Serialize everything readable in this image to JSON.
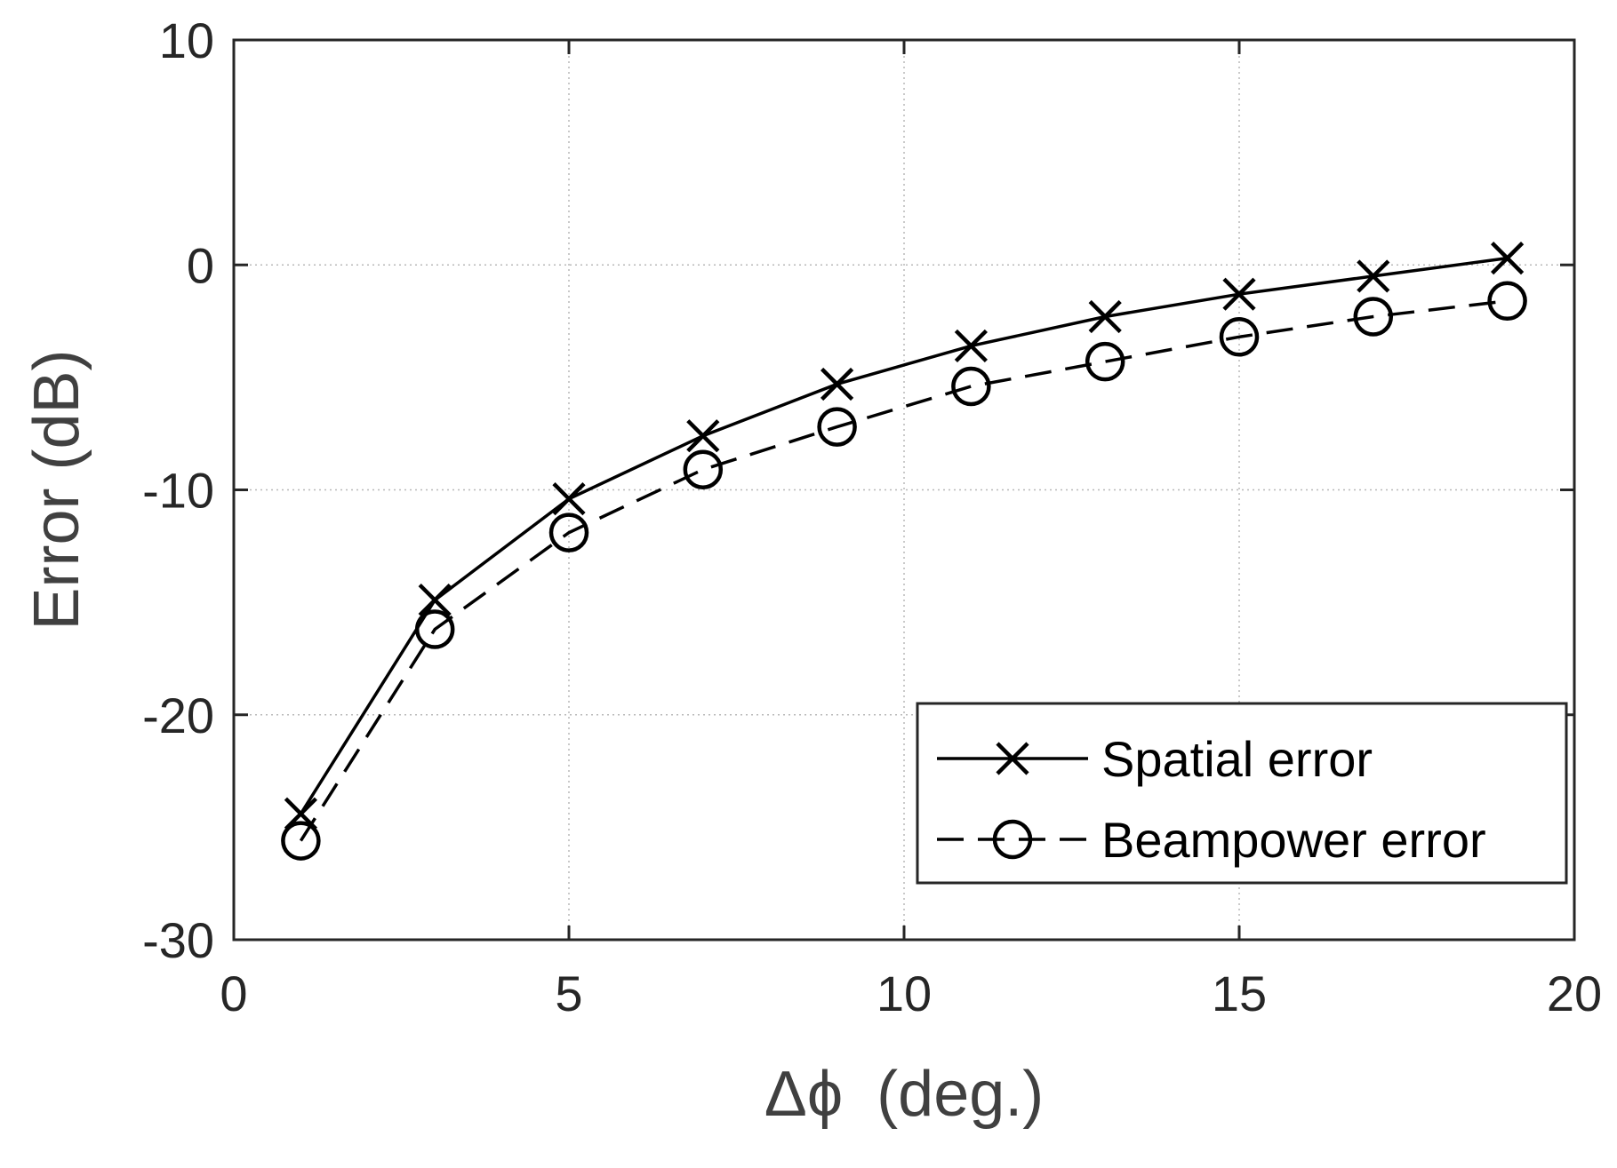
{
  "chart_data": {
    "type": "line",
    "title": "",
    "xlabel": "(deg.)",
    "xlabel_symbol": "Δϕ",
    "ylabel": "Error (dB)",
    "xlim": [
      0,
      20
    ],
    "ylim": [
      -30,
      10
    ],
    "xticks": [
      0,
      5,
      10,
      15,
      20
    ],
    "yticks": [
      -30,
      -20,
      -10,
      0,
      10
    ],
    "xtick_labels": [
      "0",
      "5",
      "10",
      "15",
      "20"
    ],
    "ytick_labels": [
      "-30",
      "-20",
      "-10",
      "0",
      "10"
    ],
    "grid": true,
    "legend_position": "bottom-right",
    "x": [
      1,
      3,
      5,
      7,
      9,
      11,
      13,
      15,
      17,
      19
    ],
    "series": [
      {
        "name": "Spatial error",
        "values": [
          -24.4,
          -14.9,
          -10.4,
          -7.6,
          -5.3,
          -3.6,
          -2.3,
          -1.3,
          -0.5,
          0.3
        ],
        "marker": "x",
        "line_style": "solid",
        "color": "#000000"
      },
      {
        "name": "Beampower error",
        "values": [
          -25.6,
          -16.2,
          -11.9,
          -9.1,
          -7.2,
          -5.4,
          -4.3,
          -3.2,
          -2.3,
          -1.6
        ],
        "marker": "o",
        "line_style": "dashed",
        "color": "#000000"
      }
    ]
  }
}
